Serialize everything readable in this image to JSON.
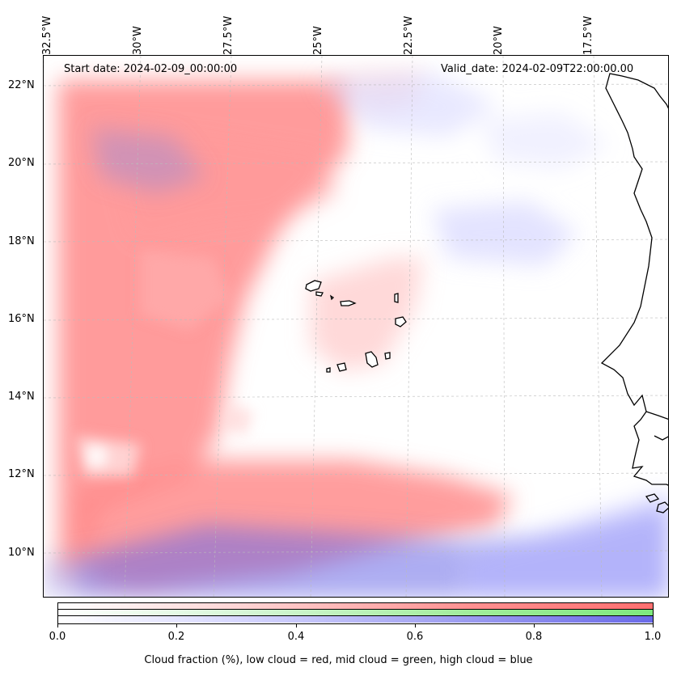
{
  "map": {
    "start_date": "Start date: 2024-02-09_00:00:00",
    "valid_date": "Valid_date: 2024-02-09T22:00:00.00",
    "longitude_labels": [
      "32.5°W",
      "30°W",
      "27.5°W",
      "25°W",
      "22.5°W",
      "20°W",
      "17.5°W"
    ],
    "latitude_labels": [
      "22°N",
      "20°N",
      "18°N",
      "16°N",
      "14°N",
      "12°N",
      "10°N"
    ],
    "layers": {
      "low_cloud_color": "#ff7a7a",
      "mid_cloud_color": "#7ee87e",
      "high_cloud_color": "#6a6ae8"
    }
  },
  "colorbar": {
    "tick_labels": [
      "0.0",
      "0.2",
      "0.4",
      "0.6",
      "0.8",
      "1.0"
    ],
    "caption": "Cloud fraction (%), low cloud = red, mid cloud = green, high cloud = blue"
  }
}
